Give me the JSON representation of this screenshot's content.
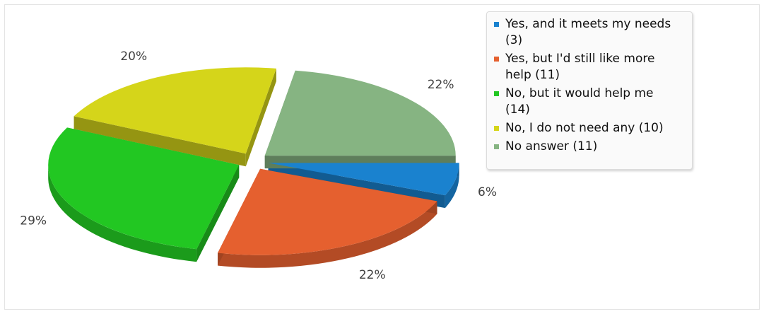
{
  "chart_data": {
    "type": "pie",
    "title": "",
    "style": "3d-exploded",
    "legend_position": "top-right",
    "slices": [
      {
        "label": "Yes, and it meets my needs (3)",
        "value": 3,
        "percent_label": "6%",
        "color": "#1a82cf"
      },
      {
        "label": "Yes, but I'd still like more help (11)",
        "value": 11,
        "percent_label": "22%",
        "color": "#e5602f"
      },
      {
        "label": "No, but it would help me (14)",
        "value": 14,
        "percent_label": "29%",
        "color": "#22c722"
      },
      {
        "label": "No, I do not need any (10)",
        "value": 10,
        "percent_label": "20%",
        "color": "#d5d51a"
      },
      {
        "label": "No answer (11)",
        "value": 11,
        "percent_label": "22%",
        "color": "#86b482"
      }
    ]
  }
}
